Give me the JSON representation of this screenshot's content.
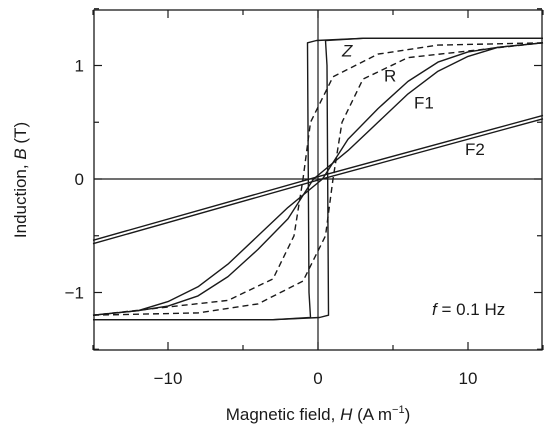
{
  "chart_data": {
    "type": "line",
    "title": "",
    "xlabel": "Magnetic field, H (A m⁻¹)",
    "xlabel_parts": [
      "Magnetic field, ",
      "H",
      " (A m",
      "−1",
      ")"
    ],
    "ylabel": "Induction, B (T)",
    "ylabel_parts": [
      "Induction, ",
      "B",
      " (T)"
    ],
    "xlim": [
      -15,
      15
    ],
    "ylim": [
      -1.5,
      1.5
    ],
    "xticks": [
      -10,
      0,
      10
    ],
    "xtick_labels": [
      "−10",
      "0",
      "10"
    ],
    "yticks": [
      -1,
      0,
      1
    ],
    "ytick_labels": [
      "−1",
      "0",
      "1"
    ],
    "grid": false,
    "legend": "none",
    "annotation_parts": [
      "f",
      " = 0.1 Hz"
    ],
    "series": [
      {
        "name": "Z",
        "style": "solid",
        "ascending": [
          [
            -15,
            -1.24
          ],
          [
            -3,
            -1.24
          ],
          [
            0.1,
            -1.22
          ],
          [
            0.7,
            -1.2
          ],
          [
            0.6,
            1.0
          ],
          [
            0.5,
            1.22
          ],
          [
            3,
            1.24
          ],
          [
            15,
            1.24
          ]
        ],
        "descending": [
          [
            15,
            1.24
          ],
          [
            3,
            1.24
          ],
          [
            -0.1,
            1.22
          ],
          [
            -0.7,
            1.2
          ],
          [
            -0.6,
            -1.0
          ],
          [
            -0.5,
            -1.22
          ],
          [
            -3,
            -1.24
          ],
          [
            -15,
            -1.24
          ]
        ]
      },
      {
        "name": "R",
        "style": "dashed",
        "ascending": [
          [
            -15,
            -1.2
          ],
          [
            -8,
            -1.18
          ],
          [
            -4,
            -1.1
          ],
          [
            -1,
            -0.9
          ],
          [
            0.5,
            -0.5
          ],
          [
            1.0,
            0.0
          ],
          [
            1.6,
            0.5
          ],
          [
            3,
            0.88
          ],
          [
            6,
            1.07
          ],
          [
            15,
            1.2
          ]
        ],
        "descending": [
          [
            15,
            1.2
          ],
          [
            8,
            1.18
          ],
          [
            4,
            1.1
          ],
          [
            1,
            0.9
          ],
          [
            -0.5,
            0.5
          ],
          [
            -1.0,
            0.0
          ],
          [
            -1.6,
            -0.5
          ],
          [
            -3,
            -0.88
          ],
          [
            -6,
            -1.07
          ],
          [
            -15,
            -1.2
          ]
        ]
      },
      {
        "name": "F1",
        "style": "solid",
        "ascending": [
          [
            -15,
            -1.2
          ],
          [
            -12,
            -1.16
          ],
          [
            -10,
            -1.08
          ],
          [
            -8,
            -0.95
          ],
          [
            -6,
            -0.75
          ],
          [
            -4,
            -0.5
          ],
          [
            -2,
            -0.25
          ],
          [
            0.3,
            0.0
          ],
          [
            2,
            0.35
          ],
          [
            4,
            0.62
          ],
          [
            6,
            0.86
          ],
          [
            8,
            1.03
          ],
          [
            10,
            1.12
          ],
          [
            12,
            1.16
          ],
          [
            15,
            1.2
          ]
        ],
        "descending": [
          [
            15,
            1.2
          ],
          [
            12,
            1.16
          ],
          [
            10,
            1.08
          ],
          [
            8,
            0.95
          ],
          [
            6,
            0.75
          ],
          [
            4,
            0.5
          ],
          [
            2,
            0.25
          ],
          [
            -0.3,
            0.0
          ],
          [
            -2,
            -0.35
          ],
          [
            -4,
            -0.62
          ],
          [
            -6,
            -0.86
          ],
          [
            -8,
            -1.03
          ],
          [
            -10,
            -1.12
          ],
          [
            -12,
            -1.16
          ],
          [
            -15,
            -1.2
          ]
        ]
      },
      {
        "name": "F2",
        "style": "solid",
        "ascending": [
          [
            -15,
            -0.57
          ],
          [
            0,
            -0.01
          ],
          [
            15,
            0.53
          ]
        ],
        "descending": [
          [
            15,
            0.56
          ],
          [
            0,
            0.02
          ],
          [
            -15,
            -0.54
          ]
        ]
      }
    ],
    "curve_labels": [
      {
        "name": "Z",
        "x": 1.6,
        "y": 1.08
      },
      {
        "name": "R",
        "x": 4.4,
        "y": 0.86
      },
      {
        "name": "F1",
        "x": 6.4,
        "y": 0.62
      },
      {
        "name": "F2",
        "x": 9.8,
        "y": 0.21
      }
    ]
  }
}
